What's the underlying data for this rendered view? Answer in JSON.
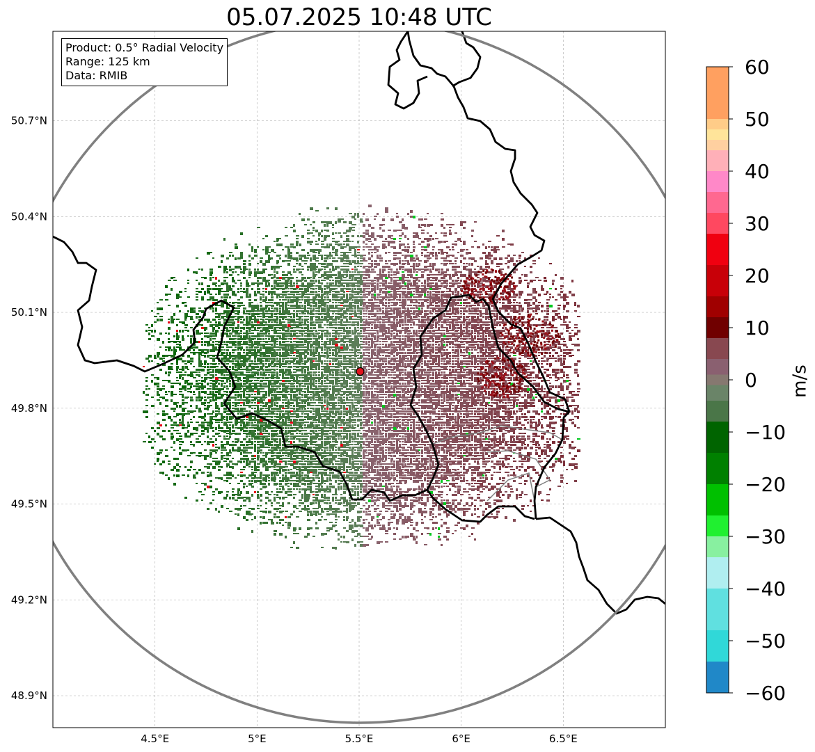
{
  "title": "05.07.2025 10:48 UTC",
  "info": {
    "product": "Product: 0.5° Radial Velocity",
    "range": "Range: 125 km",
    "source": "Data: RMIB"
  },
  "map": {
    "lon_range": [
      4.0,
      7.0
    ],
    "lat_range": [
      48.8,
      50.98
    ],
    "lon_ticks": [
      {
        "value": 4.5,
        "label": "4.5°E"
      },
      {
        "value": 5.0,
        "label": "5°E"
      },
      {
        "value": 5.5,
        "label": "5.5°E"
      },
      {
        "value": 6.0,
        "label": "6°E"
      },
      {
        "value": 6.5,
        "label": "6.5°E"
      }
    ],
    "lat_ticks": [
      {
        "value": 50.7,
        "label": "50.7°N"
      },
      {
        "value": 50.4,
        "label": "50.4°N"
      },
      {
        "value": 50.1,
        "label": "50.1°N"
      },
      {
        "value": 49.8,
        "label": "49.8°N"
      },
      {
        "value": 49.5,
        "label": "49.5°N"
      },
      {
        "value": 49.2,
        "label": "49.2°N"
      },
      {
        "value": 48.9,
        "label": "48.9°N"
      }
    ],
    "radar_site": {
      "lon": 5.505,
      "lat": 49.915
    },
    "range_ring_km": 125,
    "grid": true,
    "colors": {
      "border": "#000000",
      "province": "#808080",
      "ring": "#808080",
      "site": "#e0141e",
      "approaching_dark": "#006400",
      "approaching_grey": "#5f7e5b",
      "receding_grey": "#8a6670",
      "receding_dark": "#7a2630"
    }
  },
  "colorbar": {
    "label": "m/s",
    "min": -60,
    "max": 60,
    "ticks": [
      "60",
      "50",
      "40",
      "30",
      "20",
      "10",
      "0",
      "−10",
      "−20",
      "−30",
      "−40",
      "−50",
      "−60"
    ],
    "bands": [
      {
        "from": 50,
        "to": 60,
        "color": "#ffa060"
      },
      {
        "from": 48,
        "to": 50,
        "color": "#ffcc88"
      },
      {
        "from": 46,
        "to": 48,
        "color": "#ffe49a"
      },
      {
        "from": 44,
        "to": 46,
        "color": "#ffd0a0"
      },
      {
        "from": 40,
        "to": 44,
        "color": "#ffb0b8"
      },
      {
        "from": 36,
        "to": 40,
        "color": "#ff88c8"
      },
      {
        "from": 32,
        "to": 36,
        "color": "#ff6890"
      },
      {
        "from": 28,
        "to": 32,
        "color": "#ff4860"
      },
      {
        "from": 22,
        "to": 28,
        "color": "#f00010"
      },
      {
        "from": 16,
        "to": 22,
        "color": "#c80008"
      },
      {
        "from": 12,
        "to": 16,
        "color": "#a00000"
      },
      {
        "from": 8,
        "to": 12,
        "color": "#700000"
      },
      {
        "from": 4,
        "to": 8,
        "color": "#884850"
      },
      {
        "from": 1,
        "to": 4,
        "color": "#8a6070"
      },
      {
        "from": -1,
        "to": 1,
        "color": "#867870"
      },
      {
        "from": -4,
        "to": -1,
        "color": "#6a8468"
      },
      {
        "from": -8,
        "to": -4,
        "color": "#4a7648"
      },
      {
        "from": -14,
        "to": -8,
        "color": "#006400"
      },
      {
        "from": -20,
        "to": -14,
        "color": "#008000"
      },
      {
        "from": -26,
        "to": -20,
        "color": "#00c000"
      },
      {
        "from": -30,
        "to": -26,
        "color": "#20f030"
      },
      {
        "from": -34,
        "to": -30,
        "color": "#88f0a0"
      },
      {
        "from": -40,
        "to": -34,
        "color": "#b0eef0"
      },
      {
        "from": -48,
        "to": -40,
        "color": "#60e0e0"
      },
      {
        "from": -54,
        "to": -48,
        "color": "#30d8d8"
      },
      {
        "from": -60,
        "to": -54,
        "color": "#2088c8"
      }
    ]
  }
}
